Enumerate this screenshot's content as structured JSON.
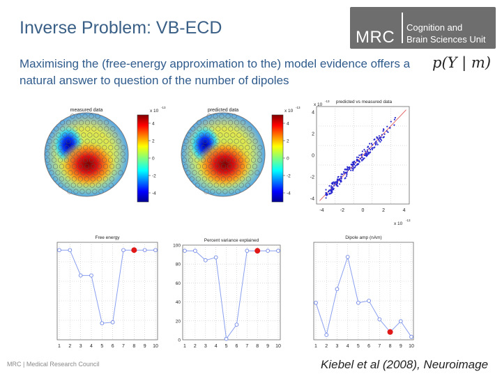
{
  "header": {
    "title": "Inverse Problem: VB-ECD",
    "subtitle": "Maximising the (free-energy approximation to the) model evidence offers a natural answer to question of the number of dipoles",
    "formula": "p(Y | m)"
  },
  "logo": {
    "mrc": "MRC",
    "unit_line1": "Cognition and",
    "unit_line2": "Brain Sciences Unit"
  },
  "footer": {
    "left": "MRC | Medical Research Council",
    "citation": "Kiebel et al (2008), Neuroimage"
  },
  "topomaps": [
    {
      "title": "measured data",
      "exponent": "x 10",
      "exp_power": "-13",
      "ticks": [
        "4",
        "2",
        "0",
        "-2",
        "-4"
      ]
    },
    {
      "title": "predicted data",
      "exponent": "x 10",
      "exp_power": "-13",
      "ticks": [
        "4",
        "2",
        "0",
        "-2",
        "-4"
      ]
    }
  ],
  "scatter": {
    "title": "predicted vs measured data",
    "xexp": "x 10",
    "xexp_power": "-13",
    "yexp": "x 10",
    "yexp_power": "-13",
    "xticks": [
      "-4",
      "-2",
      "0",
      "2",
      "4"
    ],
    "yticks": [
      "4",
      "2",
      "0",
      "-2",
      "-4"
    ]
  },
  "chart_data": [
    {
      "type": "line",
      "title": "Free energy",
      "x": [
        1,
        2,
        3,
        4,
        5,
        6,
        7,
        8,
        9,
        10
      ],
      "values": [
        92,
        92,
        66,
        66,
        17,
        18,
        92,
        92,
        92,
        92
      ],
      "highlight_index": 7,
      "ylim": [
        0,
        100
      ],
      "yticks": [],
      "xticks": [
        "1",
        "2",
        "3",
        "4",
        "5",
        "6",
        "7",
        "8",
        "9",
        "10"
      ],
      "grid": true,
      "colors": {
        "line": "#8a9ff0",
        "point": "#6f86e6",
        "highlight": "#e01818"
      }
    },
    {
      "type": "line",
      "title": "Percent variance explained",
      "x": [
        1,
        2,
        3,
        4,
        5,
        6,
        7,
        8,
        9,
        10
      ],
      "values": [
        94,
        94,
        84,
        87,
        1,
        16,
        94,
        94,
        94,
        94
      ],
      "highlight_index": 7,
      "ylim": [
        0,
        100
      ],
      "yticks": [
        "100",
        "80",
        "60",
        "40",
        "20",
        "0"
      ],
      "xticks": [
        "1",
        "2",
        "3",
        "4",
        "5",
        "6",
        "7",
        "8",
        "9",
        "10"
      ],
      "grid": true,
      "colors": {
        "line": "#8a9ff0",
        "point": "#6f86e6",
        "highlight": "#e01818"
      }
    },
    {
      "type": "line",
      "title": "Dipole amp (nAm)",
      "x": [
        1,
        2,
        3,
        4,
        5,
        6,
        7,
        8,
        9,
        10
      ],
      "values": [
        38,
        5,
        52,
        85,
        38,
        40,
        21,
        8,
        19,
        3
      ],
      "highlight_index": 7,
      "ylim": [
        0,
        100
      ],
      "yticks": [],
      "xticks": [
        "1",
        "2",
        "3",
        "4",
        "5",
        "6",
        "7",
        "8",
        "9",
        "10"
      ],
      "grid": true,
      "colors": {
        "line": "#8a9ff0",
        "point": "#6f86e6",
        "highlight": "#e01818"
      }
    }
  ]
}
